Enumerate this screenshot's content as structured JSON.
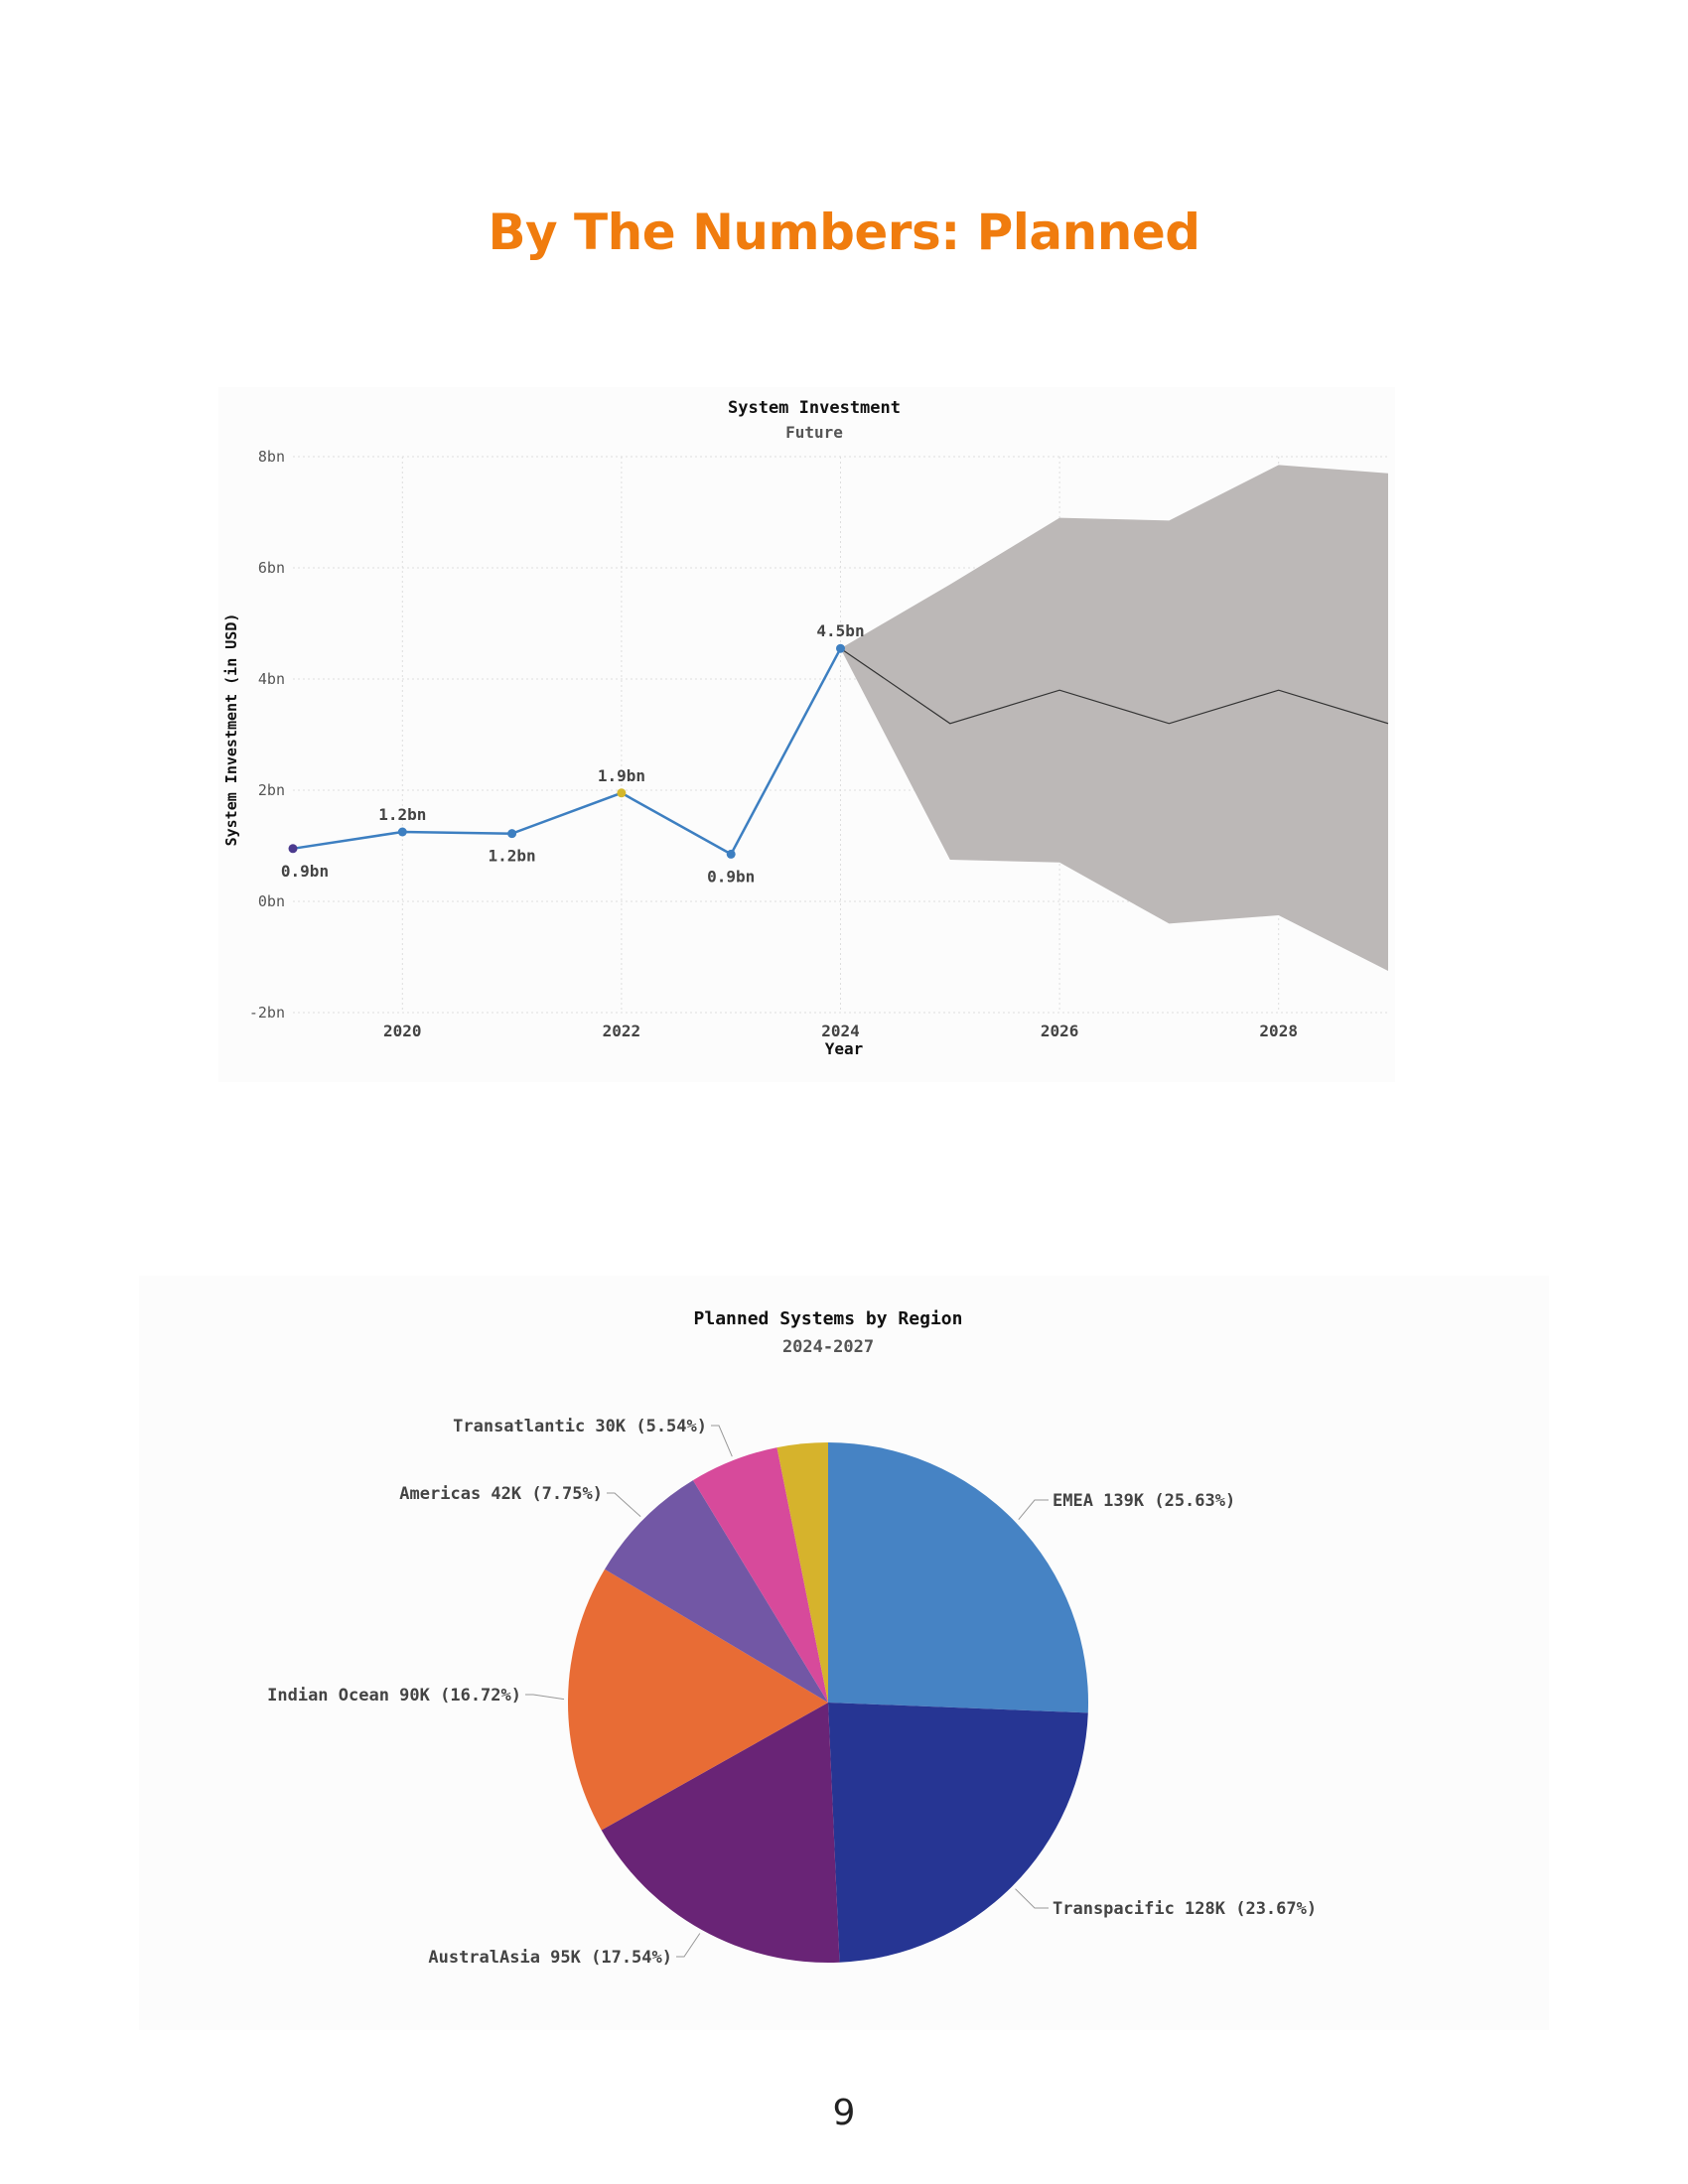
{
  "page": {
    "title": "By The Numbers: Planned",
    "page_number": "9"
  },
  "chart_data": [
    {
      "type": "line",
      "title": "System Investment",
      "subtitle": "Future",
      "xlabel": "Year",
      "ylabel": "System Investment (in USD)",
      "xlim": [
        2019,
        2029
      ],
      "ylim": [
        -2,
        8
      ],
      "x_ticks": [
        2020,
        2022,
        2024,
        2026,
        2028
      ],
      "y_ticks": [
        -2,
        0,
        2,
        4,
        6,
        8
      ],
      "y_tick_labels": [
        "-2bn",
        "0bn",
        "2bn",
        "4bn",
        "6bn",
        "8bn"
      ],
      "grid": true,
      "line_color": "#3d7fc1",
      "actual": {
        "x": [
          2019,
          2020,
          2021,
          2022,
          2023,
          2024
        ],
        "y": [
          0.95,
          1.25,
          1.22,
          1.95,
          0.85,
          4.55
        ],
        "labels": [
          "0.9bn",
          "1.2bn",
          "1.2bn",
          "1.9bn",
          "0.9bn",
          "4.5bn"
        ],
        "point_colors": [
          "#4b3a8e",
          "#3d7fc1",
          "#3d7fc1",
          "#d4b72c",
          "#3d7fc1",
          "#3d7fc1"
        ]
      },
      "forecast": {
        "x": [
          2024,
          2025,
          2026,
          2027,
          2028,
          2029
        ],
        "y": [
          4.55,
          3.2,
          3.8,
          3.2,
          3.8,
          3.2
        ],
        "upper": [
          4.55,
          5.7,
          6.9,
          6.85,
          7.85,
          7.7
        ],
        "lower": [
          4.55,
          0.75,
          0.7,
          -0.4,
          -0.25,
          -1.25
        ],
        "band_color": "#bcb8b7",
        "line_color": "#333333"
      }
    },
    {
      "type": "pie",
      "title": "Planned Systems by Region",
      "subtitle": "2024-2027",
      "slices": [
        {
          "label": "EMEA 139K (25.63%)",
          "value": 25.63,
          "color": "#4683c4"
        },
        {
          "label": "Transpacific 128K (23.67%)",
          "value": 23.67,
          "color": "#263593"
        },
        {
          "label": "AustralAsia 95K (17.54%)",
          "value": 17.54,
          "color": "#692476"
        },
        {
          "label": "Indian Ocean 90K (16.72%)",
          "value": 16.72,
          "color": "#e86c35"
        },
        {
          "label": "Americas 42K (7.75%)",
          "value": 7.75,
          "color": "#7257a5"
        },
        {
          "label": "Transatlantic 30K (5.54%)",
          "value": 5.54,
          "color": "#d74a9b"
        },
        {
          "label": "",
          "value": 3.15,
          "color": "#d6b32c"
        }
      ]
    }
  ]
}
